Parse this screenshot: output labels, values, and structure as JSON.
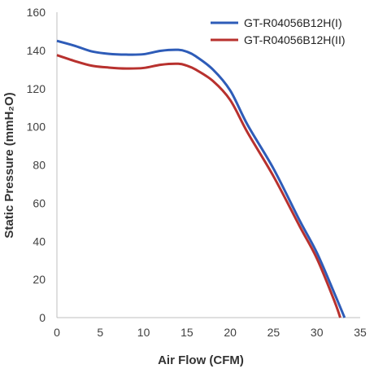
{
  "chart_data": {
    "type": "line",
    "title": "",
    "xlabel": "Air Flow (CFM)",
    "ylabel": "Static Pressure (mmH₂O)",
    "xlim": [
      0,
      35
    ],
    "ylim": [
      0,
      160
    ],
    "xticks": [
      0,
      5,
      10,
      15,
      20,
      25,
      30,
      35
    ],
    "yticks": [
      0,
      20,
      40,
      60,
      80,
      100,
      120,
      140,
      160
    ],
    "grid": false,
    "legend_position": "top-right",
    "series": [
      {
        "name": "GT-R04056B12H(I)",
        "color": "#2e5cb8",
        "x": [
          0,
          2,
          4,
          6,
          8,
          10,
          12,
          14,
          15,
          16,
          18,
          20,
          22,
          25,
          28,
          30,
          32,
          33.2
        ],
        "y": [
          145,
          142.5,
          139.5,
          138.2,
          137.8,
          138,
          139.8,
          140.3,
          139.3,
          137,
          130,
          119,
          101,
          78,
          51,
          34,
          13,
          0
        ]
      },
      {
        "name": "GT-R04056B12H(II)",
        "color": "#b8312e",
        "x": [
          0,
          2,
          4,
          6,
          8,
          10,
          12,
          14,
          15,
          16,
          18,
          20,
          22,
          25,
          28,
          30,
          32,
          32.7
        ],
        "y": [
          137.5,
          134.5,
          132,
          131,
          130.5,
          130.8,
          132.5,
          133,
          132,
          130,
          124,
          114,
          97,
          74,
          48,
          31,
          9,
          0
        ]
      }
    ]
  }
}
